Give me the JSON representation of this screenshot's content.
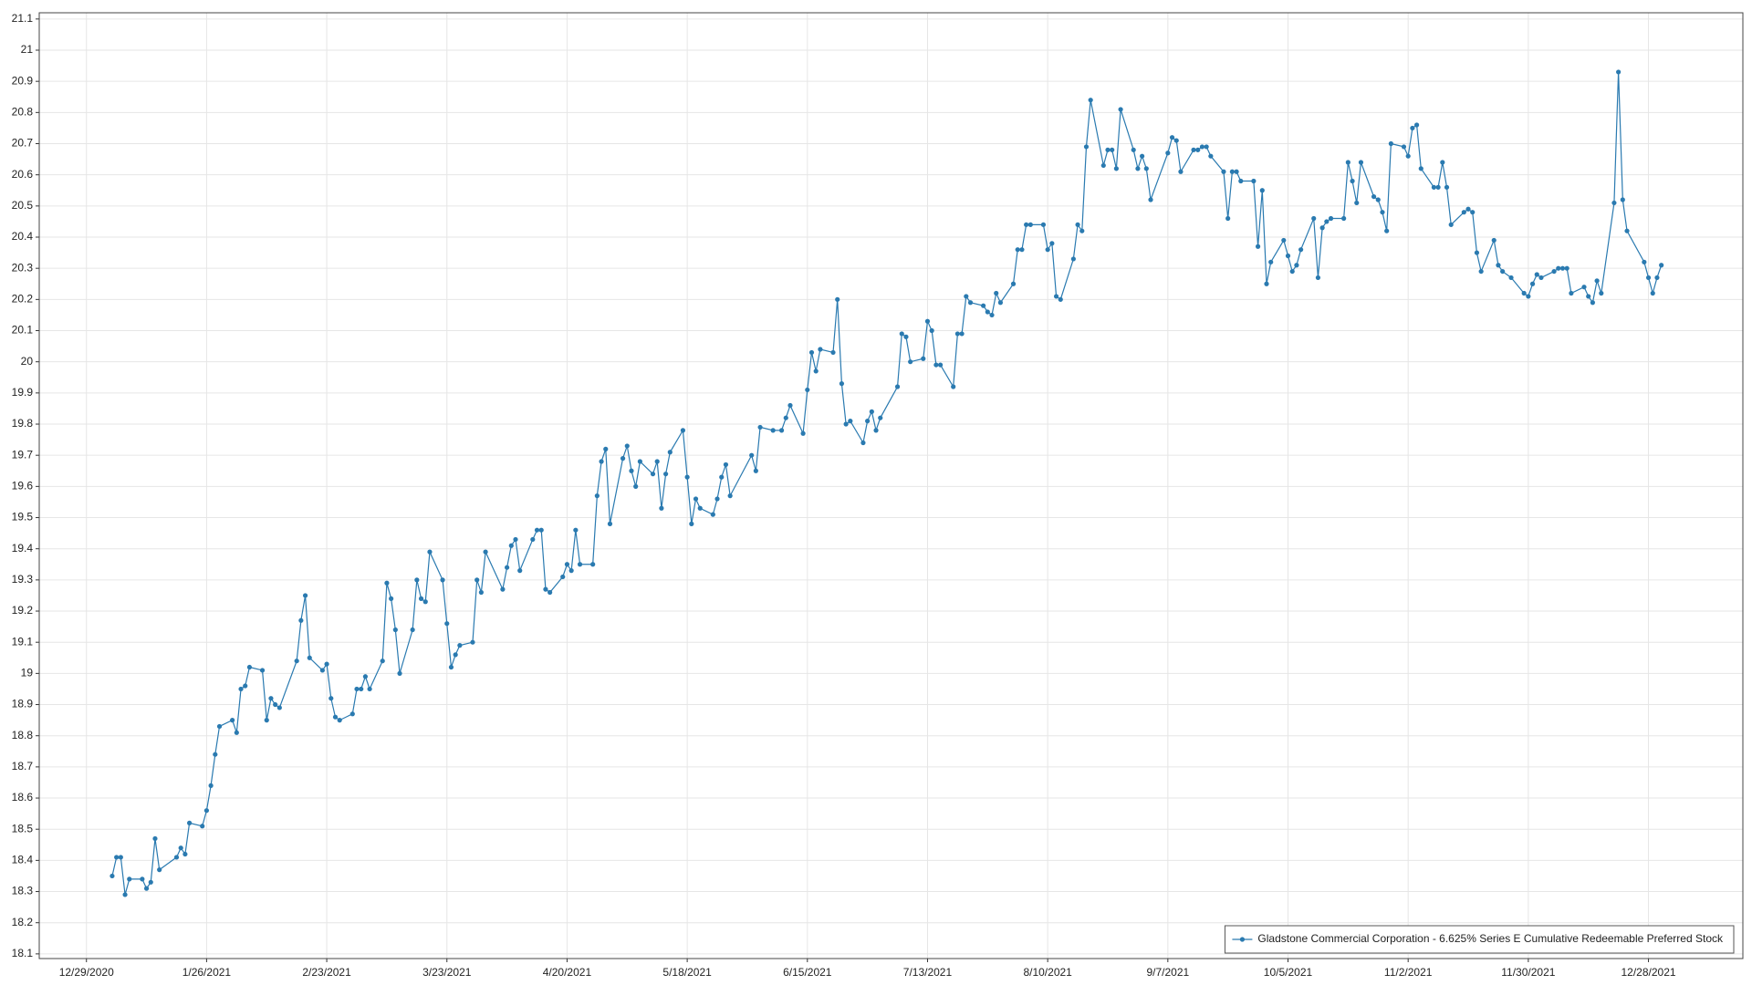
{
  "chart_data": {
    "type": "line",
    "xlim": [
      "12/18/2020",
      "1/19/2022"
    ],
    "ylim": [
      18.085,
      21.12
    ],
    "xticks": [
      "12/29/2020",
      "1/26/2021",
      "2/23/2021",
      "3/23/2021",
      "4/20/2021",
      "5/18/2021",
      "6/15/2021",
      "7/13/2021",
      "8/10/2021",
      "9/7/2021",
      "10/5/2021",
      "11/2/2021",
      "11/30/2021",
      "12/28/2021"
    ],
    "yticks": [
      18.1,
      18.2,
      18.3,
      18.4,
      18.5,
      18.6,
      18.7,
      18.8,
      18.9,
      19,
      19.1,
      19.2,
      19.3,
      19.4,
      19.5,
      19.6,
      19.7,
      19.8,
      19.9,
      20,
      20.1,
      20.2,
      20.3,
      20.4,
      20.5,
      20.6,
      20.7,
      20.8,
      20.9,
      21,
      21.1
    ],
    "grid": true,
    "legend": "bottom-right",
    "x": [
      "1/4/2021",
      "1/5/2021",
      "1/6/2021",
      "1/7/2021",
      "1/8/2021",
      "1/11/2021",
      "1/12/2021",
      "1/13/2021",
      "1/14/2021",
      "1/15/2021",
      "1/19/2021",
      "1/20/2021",
      "1/21/2021",
      "1/22/2021",
      "1/25/2021",
      "1/26/2021",
      "1/27/2021",
      "1/28/2021",
      "1/29/2021",
      "2/1/2021",
      "2/2/2021",
      "2/3/2021",
      "2/4/2021",
      "2/5/2021",
      "2/8/2021",
      "2/9/2021",
      "2/10/2021",
      "2/11/2021",
      "2/12/2021",
      "2/16/2021",
      "2/17/2021",
      "2/18/2021",
      "2/19/2021",
      "2/22/2021",
      "2/23/2021",
      "2/24/2021",
      "2/25/2021",
      "2/26/2021",
      "3/1/2021",
      "3/2/2021",
      "3/3/2021",
      "3/4/2021",
      "3/5/2021",
      "3/8/2021",
      "3/9/2021",
      "3/10/2021",
      "3/11/2021",
      "3/12/2021",
      "3/15/2021",
      "3/16/2021",
      "3/17/2021",
      "3/18/2021",
      "3/19/2021",
      "3/22/2021",
      "3/23/2021",
      "3/24/2021",
      "3/25/2021",
      "3/26/2021",
      "3/29/2021",
      "3/30/2021",
      "3/31/2021",
      "4/1/2021",
      "4/5/2021",
      "4/6/2021",
      "4/7/2021",
      "4/8/2021",
      "4/9/2021",
      "4/12/2021",
      "4/13/2021",
      "4/14/2021",
      "4/15/2021",
      "4/16/2021",
      "4/19/2021",
      "4/20/2021",
      "4/21/2021",
      "4/22/2021",
      "4/23/2021",
      "4/26/2021",
      "4/27/2021",
      "4/28/2021",
      "4/29/2021",
      "4/30/2021",
      "5/3/2021",
      "5/4/2021",
      "5/5/2021",
      "5/6/2021",
      "5/7/2021",
      "5/10/2021",
      "5/11/2021",
      "5/12/2021",
      "5/13/2021",
      "5/14/2021",
      "5/17/2021",
      "5/18/2021",
      "5/19/2021",
      "5/20/2021",
      "5/21/2021",
      "5/24/2021",
      "5/25/2021",
      "5/26/2021",
      "5/27/2021",
      "5/28/2021",
      "6/2/2021",
      "6/3/2021",
      "6/4/2021",
      "6/7/2021",
      "6/9/2021",
      "6/10/2021",
      "6/11/2021",
      "6/14/2021",
      "6/15/2021",
      "6/16/2021",
      "6/17/2021",
      "6/18/2021",
      "6/21/2021",
      "6/22/2021",
      "6/23/2021",
      "6/24/2021",
      "6/25/2021",
      "6/28/2021",
      "6/29/2021",
      "6/30/2021",
      "7/1/2021",
      "7/2/2021",
      "7/6/2021",
      "7/7/2021",
      "7/8/2021",
      "7/9/2021",
      "7/12/2021",
      "7/13/2021",
      "7/14/2021",
      "7/15/2021",
      "7/16/2021",
      "7/19/2021",
      "7/20/2021",
      "7/21/2021",
      "7/22/2021",
      "7/23/2021",
      "7/26/2021",
      "7/27/2021",
      "7/28/2021",
      "7/29/2021",
      "7/30/2021",
      "8/2/2021",
      "8/3/2021",
      "8/4/2021",
      "8/5/2021",
      "8/6/2021",
      "8/9/2021",
      "8/10/2021",
      "8/11/2021",
      "8/12/2021",
      "8/13/2021",
      "8/16/2021",
      "8/17/2021",
      "8/18/2021",
      "8/19/2021",
      "8/20/2021",
      "8/23/2021",
      "8/24/2021",
      "8/25/2021",
      "8/26/2021",
      "8/27/2021",
      "8/30/2021",
      "8/31/2021",
      "9/1/2021",
      "9/2/2021",
      "9/3/2021",
      "9/7/2021",
      "9/8/2021",
      "9/9/2021",
      "9/10/2021",
      "9/13/2021",
      "9/14/2021",
      "9/15/2021",
      "9/16/2021",
      "9/17/2021",
      "9/20/2021",
      "9/21/2021",
      "9/22/2021",
      "9/23/2021",
      "9/24/2021",
      "9/27/2021",
      "9/28/2021",
      "9/29/2021",
      "9/30/2021",
      "10/1/2021",
      "10/4/2021",
      "10/5/2021",
      "10/6/2021",
      "10/7/2021",
      "10/8/2021",
      "10/11/2021",
      "10/12/2021",
      "10/13/2021",
      "10/14/2021",
      "10/15/2021",
      "10/18/2021",
      "10/19/2021",
      "10/20/2021",
      "10/21/2021",
      "10/22/2021",
      "10/25/2021",
      "10/26/2021",
      "10/27/2021",
      "10/28/2021",
      "10/29/2021",
      "11/1/2021",
      "11/2/2021",
      "11/3/2021",
      "11/4/2021",
      "11/5/2021",
      "11/8/2021",
      "11/9/2021",
      "11/10/2021",
      "11/11/2021",
      "11/12/2021",
      "11/15/2021",
      "11/16/2021",
      "11/17/2021",
      "11/18/2021",
      "11/19/2021",
      "11/22/2021",
      "11/23/2021",
      "11/24/2021",
      "11/26/2021",
      "11/29/2021",
      "11/30/2021",
      "12/1/2021",
      "12/2/2021",
      "12/3/2021",
      "12/6/2021",
      "12/7/2021",
      "12/8/2021",
      "12/9/2021",
      "12/10/2021",
      "12/13/2021",
      "12/14/2021",
      "12/15/2021",
      "12/16/2021",
      "12/17/2021",
      "12/20/2021",
      "12/21/2021",
      "12/22/2021",
      "12/23/2021",
      "12/27/2021",
      "12/28/2021",
      "12/29/2021",
      "12/30/2021",
      "12/31/2021"
    ],
    "series": [
      {
        "name": "Gladstone Commercial Corporation - 6.625% Series E Cumulative Redeemable Preferred Stock",
        "color": "#2a7ab0",
        "values": [
          18.35,
          18.41,
          18.41,
          18.29,
          18.34,
          18.34,
          18.31,
          18.33,
          18.47,
          18.37,
          18.41,
          18.44,
          18.42,
          18.52,
          18.51,
          18.56,
          18.64,
          18.74,
          18.83,
          18.85,
          18.81,
          18.95,
          18.96,
          19.02,
          19.01,
          18.85,
          18.92,
          18.9,
          18.89,
          19.04,
          19.17,
          19.25,
          19.05,
          19.01,
          19.03,
          18.92,
          18.86,
          18.85,
          18.87,
          18.95,
          18.95,
          18.99,
          18.95,
          19.04,
          19.29,
          19.24,
          19.14,
          19.0,
          19.14,
          19.3,
          19.24,
          19.23,
          19.39,
          19.3,
          19.16,
          19.02,
          19.06,
          19.09,
          19.1,
          19.3,
          19.26,
          19.39,
          19.27,
          19.34,
          19.41,
          19.43,
          19.33,
          19.43,
          19.46,
          19.46,
          19.27,
          19.26,
          19.31,
          19.35,
          19.33,
          19.46,
          19.35,
          19.35,
          19.57,
          19.68,
          19.72,
          19.48,
          19.69,
          19.73,
          19.65,
          19.6,
          19.68,
          19.64,
          19.68,
          19.53,
          19.64,
          19.71,
          19.78,
          19.63,
          19.48,
          19.56,
          19.53,
          19.51,
          19.56,
          19.63,
          19.67,
          19.57,
          19.7,
          19.65,
          19.79,
          19.78,
          19.78,
          19.82,
          19.86,
          19.77,
          19.91,
          20.03,
          19.97,
          20.04,
          20.03,
          20.2,
          19.93,
          19.8,
          19.81,
          19.74,
          19.81,
          19.84,
          19.78,
          19.82,
          19.92,
          20.09,
          20.08,
          20.0,
          20.01,
          20.13,
          20.1,
          19.99,
          19.99,
          19.92,
          20.09,
          20.09,
          20.21,
          20.19,
          20.18,
          20.16,
          20.15,
          20.22,
          20.19,
          20.25,
          20.36,
          20.36,
          20.44,
          20.44,
          20.44,
          20.36,
          20.38,
          20.21,
          20.2,
          20.33,
          20.44,
          20.42,
          20.69,
          20.84,
          20.63,
          20.68,
          20.68,
          20.62,
          20.81,
          20.68,
          20.62,
          20.66,
          20.62,
          20.52,
          20.67,
          20.72,
          20.71,
          20.61,
          20.68,
          20.68,
          20.69,
          20.69,
          20.66,
          20.61,
          20.46,
          20.61,
          20.61,
          20.58,
          20.58,
          20.37,
          20.55,
          20.25,
          20.32,
          20.39,
          20.34,
          20.29,
          20.31,
          20.36,
          20.46,
          20.27,
          20.43,
          20.45,
          20.46,
          20.46,
          20.64,
          20.58,
          20.51,
          20.64,
          20.53,
          20.52,
          20.48,
          20.42,
          20.7,
          20.69,
          20.66,
          20.75,
          20.76,
          20.62,
          20.56,
          20.56,
          20.64,
          20.56,
          20.44,
          20.48,
          20.49,
          20.48,
          20.35,
          20.29,
          20.39,
          20.31,
          20.29,
          20.27,
          20.22,
          20.21,
          20.25,
          20.28,
          20.27,
          20.29,
          20.3,
          20.3,
          20.3,
          20.22,
          20.24,
          20.21,
          20.19,
          20.26,
          20.22,
          20.51,
          20.93,
          20.52,
          20.42,
          20.32,
          20.27,
          20.22,
          20.27,
          20.31
        ]
      }
    ]
  }
}
